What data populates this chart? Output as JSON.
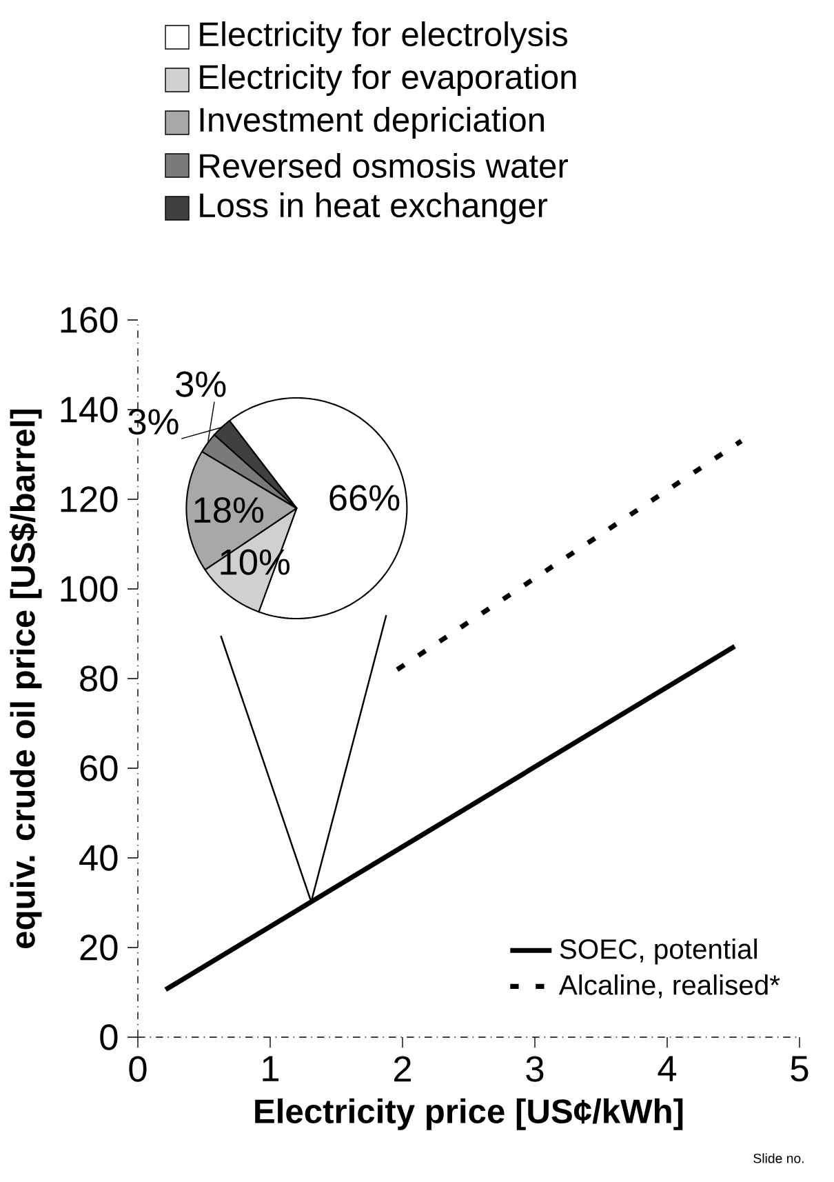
{
  "chart_data": [
    {
      "type": "line",
      "xlabel": "**Electricity price [US¢/kWh]**",
      "ylabel": "**equiv. crude oil price [US$/barrel]**",
      "xlim": [
        0,
        5
      ],
      "ylim": [
        0,
        160
      ],
      "xticks": [
        0,
        1,
        2,
        3,
        4,
        5
      ],
      "yticks": [
        0,
        20,
        40,
        60,
        80,
        100,
        120,
        140,
        160
      ],
      "legend": "bottom right",
      "series": [
        {
          "name": "SOEC, potential",
          "color": "#000000",
          "line_style": "solid",
          "x": [
            0.21,
            4.51
          ],
          "values": [
            10.6,
            87.2
          ]
        },
        {
          "name": "Alcaline, realised*",
          "color": "#000000",
          "line_style": "dashed",
          "x": [
            1.96,
            4.56
          ],
          "values": [
            82,
            133
          ]
        }
      ],
      "annotations": [
        "Slide no."
      ]
    },
    {
      "type": "pie",
      "categories": [
        "Electricity for electrolysis",
        "Electricity for evaporation",
        "Investment depriciation",
        "Reversed osmosis water",
        "Loss in heat exchanger"
      ],
      "values": [
        66,
        10,
        18,
        3,
        3
      ],
      "colors": [
        "#ffffff",
        "#d0d0d0",
        "#a8a8a8",
        "#7a7a7a",
        "#404040"
      ],
      "value_labels": [
        "66%",
        "10%",
        "18%",
        "3%",
        "3%"
      ],
      "legend": "top"
    }
  ]
}
